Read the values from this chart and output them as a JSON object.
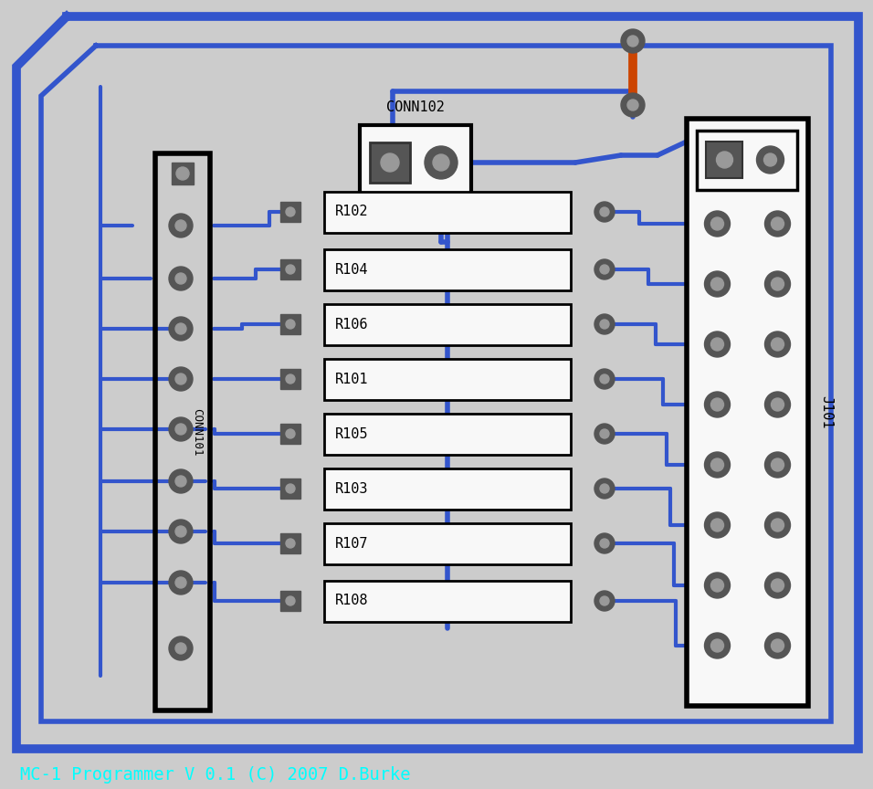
{
  "bg_color": "#cccccc",
  "blue": "#3355cc",
  "black": "#000000",
  "white": "#f8f8f8",
  "gray_dark": "#555555",
  "gray_pad": "#666666",
  "gray_hole": "#999999",
  "orange": "#cc4400",
  "cyan": "#00ffff",
  "title": "MC-1 Programmer V 0.1 (C) 2007 D.Burke",
  "resistors": [
    "R102",
    "R104",
    "R106",
    "R101",
    "R105",
    "R103",
    "R107",
    "R108"
  ],
  "figsize": [
    9.56,
    8.64
  ],
  "dpi": 100
}
